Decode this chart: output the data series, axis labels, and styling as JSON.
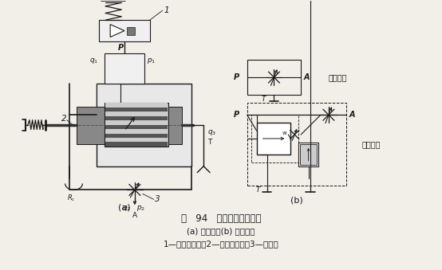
{
  "title_line1": "图   94   溢流节流阀的原理",
  "title_line2": "(a) 结构图；(b) 图形符号",
  "title_line3": "1—先导压力阀；2—定差溢流阀；3—节流阀",
  "label_a": "(a)",
  "label_b": "(b)",
  "label_simplified": "简化符号",
  "label_detailed": "详细符号",
  "bg_color": "#f2efe9",
  "line_color": "#1a1a1a",
  "font_size_main": 8.5,
  "font_size_small": 7.0
}
